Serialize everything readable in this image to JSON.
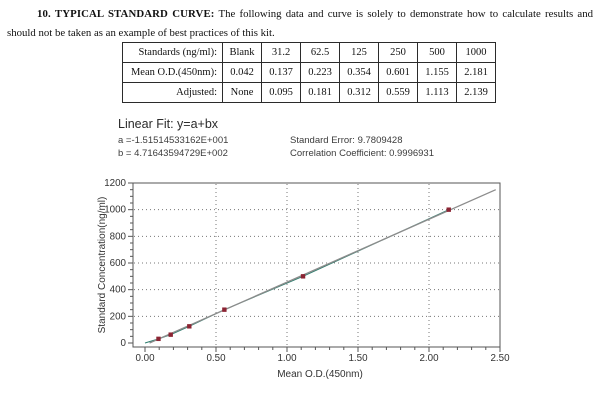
{
  "document": {
    "heading": "10. TYPICAL STANDARD CURVE:",
    "body": "The following data and curve is solely to demonstrate how to calculate results and should not be taken as an example of best practices of this kit."
  },
  "table": {
    "rows": [
      {
        "label": "Standards (ng/ml):",
        "values": [
          "Blank",
          "31.2",
          "62.5",
          "125",
          "250",
          "500",
          "1000"
        ]
      },
      {
        "label": "Mean O.D.(450nm):",
        "values": [
          "0.042",
          "0.137",
          "0.223",
          "0.354",
          "0.601",
          "1.155",
          "2.181"
        ]
      },
      {
        "label": "Adjusted:",
        "values": [
          "None",
          "0.095",
          "0.181",
          "0.312",
          "0.559",
          "1.113",
          "2.139"
        ]
      }
    ]
  },
  "linear_fit": {
    "title": "Linear Fit: y=a+bx",
    "a_label": "a =-1.51514533162E+001",
    "b_label": "b = 4.71643594729E+002",
    "standard_error": "Standard Error: 9.7809428",
    "correlation": "Correlation Coefficient: 0.9996931"
  },
  "chart_data": {
    "type": "scatter",
    "title": "",
    "xlabel": "Mean O.D.(450nm)",
    "ylabel": "Standard Concentration(ng/ml)",
    "xlim": [
      0,
      2.5
    ],
    "ylim": [
      0,
      1200
    ],
    "x_ticks": [
      0,
      0.5,
      1.0,
      1.5,
      2.0,
      2.5
    ],
    "x_tick_labels": [
      "0.00",
      "0.50",
      "1.00",
      "1.50",
      "2.00",
      "2.50"
    ],
    "y_ticks": [
      0,
      200,
      400,
      600,
      800,
      1000,
      1200
    ],
    "grid": "dotted",
    "legend": "none",
    "series": [
      {
        "name": "standards",
        "type": "scatter-line",
        "line_color": "#2e7d6e",
        "marker_color": "#8b2433",
        "x": [
          0.095,
          0.181,
          0.312,
          0.559,
          1.113,
          2.139
        ],
        "y": [
          31.2,
          62.5,
          125,
          250,
          500,
          1000
        ]
      },
      {
        "name": "linear-fit",
        "type": "line",
        "color": "#8c8c8c",
        "a": -15.1514533162,
        "b": 471.643594729,
        "x_range": [
          0.0321,
          2.47
        ]
      }
    ]
  },
  "colors": {
    "frame": "#555555",
    "gridline": "#777777",
    "tick_text": "#333333"
  }
}
